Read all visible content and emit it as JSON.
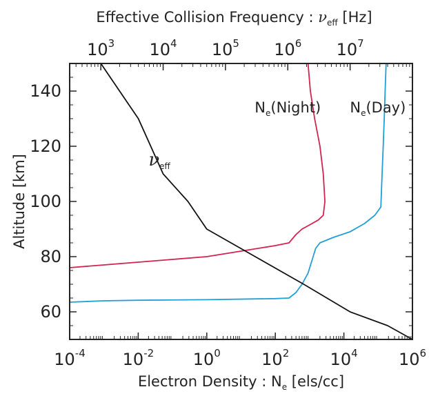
{
  "chart_data": {
    "type": "line",
    "x_bottom": {
      "label_text": "Electron Density : N",
      "label_sub": "e",
      "label_units": " [els/cc]",
      "scale": "log",
      "range": [
        0.0001,
        1000000
      ],
      "ticks": [
        {
          "base": "10",
          "exp": "-4",
          "value": 0.0001
        },
        {
          "base": "10",
          "exp": "-2",
          "value": 0.01
        },
        {
          "base": "10",
          "exp": "0",
          "value": 1
        },
        {
          "base": "10",
          "exp": "2",
          "value": 100
        },
        {
          "base": "10",
          "exp": "4",
          "value": 10000
        },
        {
          "base": "10",
          "exp": "6",
          "value": 1000000
        }
      ]
    },
    "x_top": {
      "label_text": "Effective Collision Frequency : ",
      "label_symbol": "ν",
      "label_sub": "eff",
      "label_units": " [Hz]",
      "scale": "log",
      "range": [
        316.2,
        100000000
      ],
      "ticks": [
        {
          "base": "10",
          "exp": "3",
          "value": 1000
        },
        {
          "base": "10",
          "exp": "4",
          "value": 10000
        },
        {
          "base": "10",
          "exp": "5",
          "value": 100000
        },
        {
          "base": "10",
          "exp": "6",
          "value": 1000000
        },
        {
          "base": "10",
          "exp": "7",
          "value": 10000000
        }
      ]
    },
    "y": {
      "label": "Altitude [km]",
      "range": [
        50,
        150
      ],
      "ticks": [
        60,
        80,
        100,
        120,
        140
      ]
    },
    "grid": false,
    "legend": "none (curves labeled directly)",
    "series": [
      {
        "key": "night",
        "name_text": "N",
        "name_sub": "e",
        "name_suffix": "(Night)",
        "axis": "bottom",
        "color": "#d2234e",
        "points": [
          [
            0.0001,
            76
          ],
          [
            0.001,
            77
          ],
          [
            0.01,
            78
          ],
          [
            0.1,
            79
          ],
          [
            1,
            80
          ],
          [
            10,
            82
          ],
          [
            100,
            84
          ],
          [
            250,
            85
          ],
          [
            400,
            88
          ],
          [
            600,
            90
          ],
          [
            1000,
            91.5
          ],
          [
            1800,
            93.3
          ],
          [
            2500,
            95
          ],
          [
            2800,
            100
          ],
          [
            2500,
            110
          ],
          [
            2000,
            120
          ],
          [
            1400,
            130
          ],
          [
            1050,
            140
          ],
          [
            900,
            150
          ]
        ]
      },
      {
        "key": "day",
        "name_text": "N",
        "name_sub": "e",
        "name_suffix": "(Day)",
        "axis": "bottom",
        "color": "#1f9fd6",
        "points": [
          [
            0.0001,
            63.5
          ],
          [
            0.001,
            64
          ],
          [
            0.01,
            64.2
          ],
          [
            1,
            64.4
          ],
          [
            100,
            64.8
          ],
          [
            250,
            65
          ],
          [
            400,
            67
          ],
          [
            600,
            70
          ],
          [
            900,
            74
          ],
          [
            1200,
            79
          ],
          [
            1500,
            83
          ],
          [
            2000,
            85
          ],
          [
            5000,
            87
          ],
          [
            15000,
            89
          ],
          [
            40000,
            92
          ],
          [
            80000,
            95
          ],
          [
            120000,
            98
          ],
          [
            130000,
            110
          ],
          [
            140000,
            120
          ],
          [
            150000,
            130
          ],
          [
            160000,
            140
          ],
          [
            170000,
            150
          ]
        ]
      },
      {
        "key": "nu",
        "name_symbol": "ν",
        "name_sub": "eff",
        "axis": "top",
        "color": "#111111",
        "points": [
          [
            1000,
            150
          ],
          [
            4000,
            130
          ],
          [
            10000,
            110
          ],
          [
            25000,
            100
          ],
          [
            50000,
            90
          ],
          [
            300000,
            80
          ],
          [
            1800000,
            70
          ],
          [
            10000000,
            60
          ],
          [
            40000000,
            55
          ],
          [
            100000000,
            50
          ]
        ]
      }
    ],
    "annotations": [
      {
        "target": "nu",
        "symbol": "ν",
        "sub": "eff",
        "x_bottom": 0.02,
        "y": 113
      },
      {
        "target": "night",
        "text": "N",
        "sub": "e",
        "suffix": "(Night)",
        "x_bottom": 25,
        "y": 132.3
      },
      {
        "target": "day",
        "text": "N",
        "sub": "e",
        "suffix": "(Day)",
        "x_bottom": 15000,
        "y": 132.3
      }
    ]
  }
}
